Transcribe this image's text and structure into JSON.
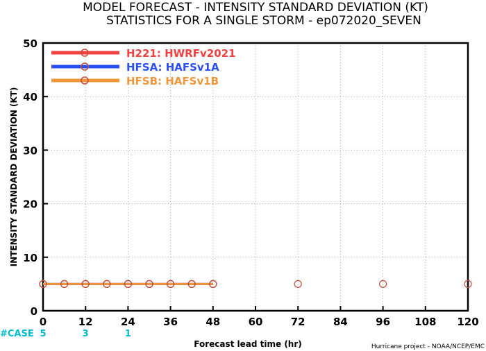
{
  "chart_data": {
    "type": "line",
    "title": "MODEL FORECAST - INTENSITY STANDARD DEVIATION (KT)",
    "subtitle": "STATISTICS FOR A SINGLE STORM - ep072020_SEVEN",
    "xlabel": "Forecast lead time (hr)",
    "ylabel": "INTENSITY STANDARD DEVIATION (KT)",
    "xlim": [
      0,
      120
    ],
    "ylim": [
      0,
      50
    ],
    "x_ticks": [
      0,
      12,
      24,
      36,
      48,
      60,
      72,
      84,
      96,
      108,
      120
    ],
    "y_ticks": [
      0,
      10,
      20,
      30,
      40,
      50
    ],
    "grid": true,
    "legend_position": "top-left",
    "series": [
      {
        "name": "H221: HWRFv2021",
        "color": "#f04040",
        "x": [
          0,
          6,
          12,
          18,
          24,
          30,
          36,
          42,
          48
        ],
        "values": [
          5,
          5,
          5,
          5,
          5,
          5,
          5,
          5,
          5
        ]
      },
      {
        "name": "HFSA: HAFSv1A",
        "color": "#2a4ff2",
        "x": [
          0,
          6,
          12,
          18,
          24,
          30,
          36,
          42,
          48
        ],
        "values": [
          5,
          5,
          5,
          5,
          5,
          5,
          5,
          5,
          5
        ]
      },
      {
        "name": "HFSB: HAFSv1B",
        "color": "#f0953a",
        "x": [
          0,
          6,
          12,
          18,
          24,
          30,
          36,
          42,
          48
        ],
        "values": [
          5,
          5,
          5,
          5,
          5,
          5,
          5,
          5,
          5
        ]
      }
    ],
    "extra_markers": {
      "color": "#c0503a",
      "x": [
        72,
        96,
        120
      ],
      "values": [
        5,
        5,
        5
      ]
    },
    "case_label": "#CASE",
    "cases": [
      {
        "x": 0,
        "count": "5"
      },
      {
        "x": 12,
        "count": "3"
      },
      {
        "x": 24,
        "count": "1"
      }
    ],
    "credit": "Hurricane project - NOAA/NCEP/EMC"
  }
}
